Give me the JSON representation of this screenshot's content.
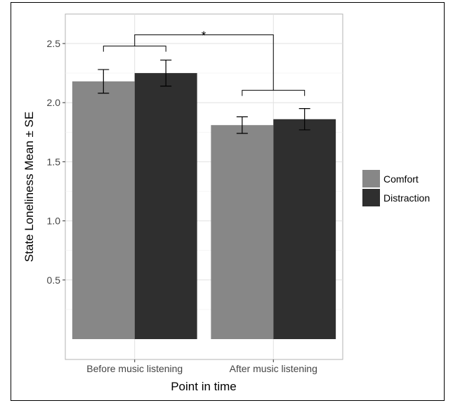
{
  "chart_data": {
    "type": "bar",
    "title": "",
    "xlabel": "Point in time",
    "ylabel": "State Loneliness Mean ± SE",
    "categories": [
      "Before music listening",
      "After music listening"
    ],
    "series": [
      {
        "name": "Comfort",
        "color": "#878787",
        "values": [
          2.18,
          1.81
        ],
        "se": [
          0.1,
          0.07
        ]
      },
      {
        "name": "Distraction",
        "color": "#2f2f2f",
        "values": [
          2.25,
          1.86
        ],
        "se": [
          0.11,
          0.09
        ]
      }
    ],
    "ylim": [
      0,
      2.7
    ],
    "yticks": [
      0.5,
      1.0,
      1.5,
      2.0,
      2.5
    ],
    "ytick_labels": [
      "0.5",
      "1.0",
      "1.5",
      "2.0",
      "2.5"
    ],
    "grid": true,
    "legend_position": "right",
    "annotations": [
      {
        "text": "*",
        "type": "significance-bracket"
      }
    ]
  }
}
